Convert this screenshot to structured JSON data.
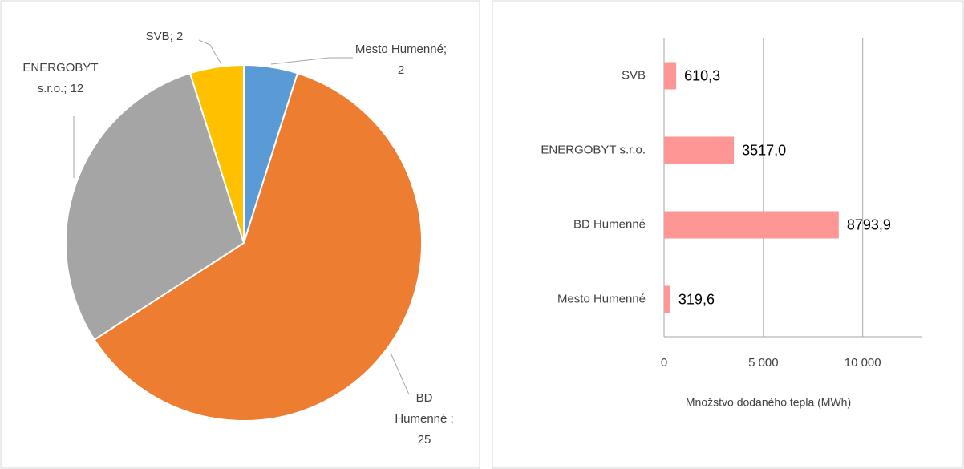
{
  "chart_data": [
    {
      "type": "pie",
      "categories": [
        "Mesto Humenné",
        "BD Humenné",
        "ENERGOBYT s.r.o.",
        "SVB"
      ],
      "values": [
        2,
        25,
        12,
        2
      ],
      "value_labels": [
        "Mesto Humenné; 2",
        "BD Humenné ; 25",
        "ENERGOBYT s.r.o.; 12",
        "SVB; 2"
      ],
      "colors": [
        "#5b9bd5",
        "#ed7d31",
        "#a5a5a5",
        "#ffc000"
      ]
    },
    {
      "type": "barh",
      "categories": [
        "SVB",
        "ENERGOBYT s.r.o.",
        "BD Humenné",
        "Mesto Humenné"
      ],
      "values": [
        610.3,
        3517.0,
        8793.9,
        319.6
      ],
      "value_labels": [
        "610,3",
        "3517,0",
        "8793,9",
        "319,6"
      ],
      "color": "#ff9696",
      "xlabel": "Množstvo dodaného tepla (MWh)",
      "xlim": [
        0,
        13000
      ],
      "xticks": [
        0,
        {
          "value": 5000,
          "label": "5 000"
        },
        {
          "value": 10000,
          "label": "10 000"
        }
      ],
      "grid": true
    }
  ]
}
